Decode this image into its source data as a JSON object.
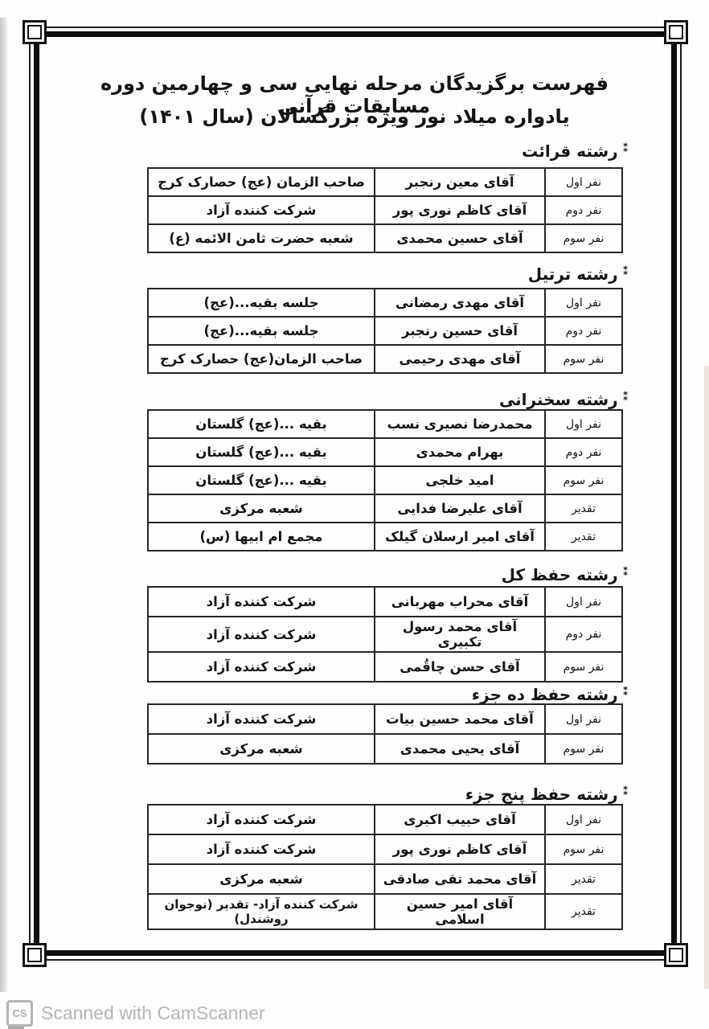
{
  "page": {
    "title_line1": "فهرست برگزیدگان مرحله نهایی سی و چهارمین دوره مسابقات قرآنی",
    "title_line2": "یادواره میلاد نور  ویژه بزرگسالان (سال ۱۴۰۱)",
    "section_marker": "⁑",
    "colors": {
      "ink": "#141414",
      "frame": "#0e0e0e",
      "watermark": "#b5b5b5",
      "paper": "#fdfdfc"
    }
  },
  "sections": [
    {
      "title": "رشته قرائت",
      "rows": [
        {
          "rank": "نفر اول",
          "name": "آقای معین رنجبر",
          "branch": "صاحب الزمان (عج) حصارک کرج"
        },
        {
          "rank": "نفر دوم",
          "name": "آقای کاظم نوری پور",
          "branch": "شرکت کننده آزاد"
        },
        {
          "rank": "نفر سوم",
          "name": "آقای حسین محمدی",
          "branch": "شعبه حضرت ثامن الائمه (ع)"
        }
      ]
    },
    {
      "title": "رشته ترتیل",
      "rows": [
        {
          "rank": "نفر اول",
          "name": "آقای مهدی رمضانی",
          "branch": "جلسه بقیه...(عج)"
        },
        {
          "rank": "نفر دوم",
          "name": "آقای حسین رنجبر",
          "branch": "جلسه بقیه...(عج)"
        },
        {
          "rank": "نفر سوم",
          "name": "آقای مهدی رحیمی",
          "branch": "صاحب الزمان(عج) حصارک کرج"
        }
      ]
    },
    {
      "title": "رشته سخنرانی",
      "rows": [
        {
          "rank": "نفر اول",
          "name": "محمدرضا نصیری نسب",
          "branch": "بقیه ...(عج) گلستان"
        },
        {
          "rank": "نفر دوم",
          "name": "بهرام محمدی",
          "branch": "بقیه ...(عج) گلستان"
        },
        {
          "rank": "نفر سوم",
          "name": "امید خلجی",
          "branch": "بقیه ...(عج) گلستان"
        },
        {
          "rank": "تقدیر",
          "name": "آقای علیرضا فدایی",
          "branch": "شعبه مرکزی"
        },
        {
          "rank": "تقدیر",
          "name": "آقای امیر ارسلان گیلک",
          "branch": "مجمع ام ابیها (س)"
        }
      ]
    },
    {
      "title": "رشته حفظ کل",
      "rows": [
        {
          "rank": "نفر اول",
          "name": "آقای محراب مهربانی",
          "branch": "شرکت کننده آزاد"
        },
        {
          "rank": "نفر دوم",
          "name": "آقای محمد رسول تکبیری",
          "branch": "شرکت کننده آزاد"
        },
        {
          "rank": "نفر سوم",
          "name": "آقای حسن چاقُمی",
          "branch": "شرکت کننده آزاد"
        }
      ]
    },
    {
      "title": "رشته حفظ ده جزء",
      "rows": [
        {
          "rank": "نفر اول",
          "name": "آقای محمد حسین بیات",
          "branch": "شرکت کننده آزاد"
        },
        {
          "rank": "نفر سوم",
          "name": "آقای یحیی محمدی",
          "branch": "شعبه مرکزی"
        }
      ]
    },
    {
      "title": "رشته حفظ پنج جزء",
      "rows": [
        {
          "rank": "نفر اول",
          "name": "آقای حبیب اکبری",
          "branch": "شرکت کننده آزاد"
        },
        {
          "rank": "نفر سوم",
          "name": "آقای کاظم نوری پور",
          "branch": "شرکت کننده آزاد"
        },
        {
          "rank": "تقدیر",
          "name": "آقای محمد تقی صادقی",
          "branch": "شعبه مرکزی"
        },
        {
          "rank": "تقدیر",
          "name": "آقای امیر حسین اسلامی",
          "branch": "شرکت کننده آزاد- تقدیر (نوجوان روشندل)"
        }
      ]
    }
  ],
  "footer": {
    "logo": "CS",
    "text": "Scanned with CamScanner"
  }
}
